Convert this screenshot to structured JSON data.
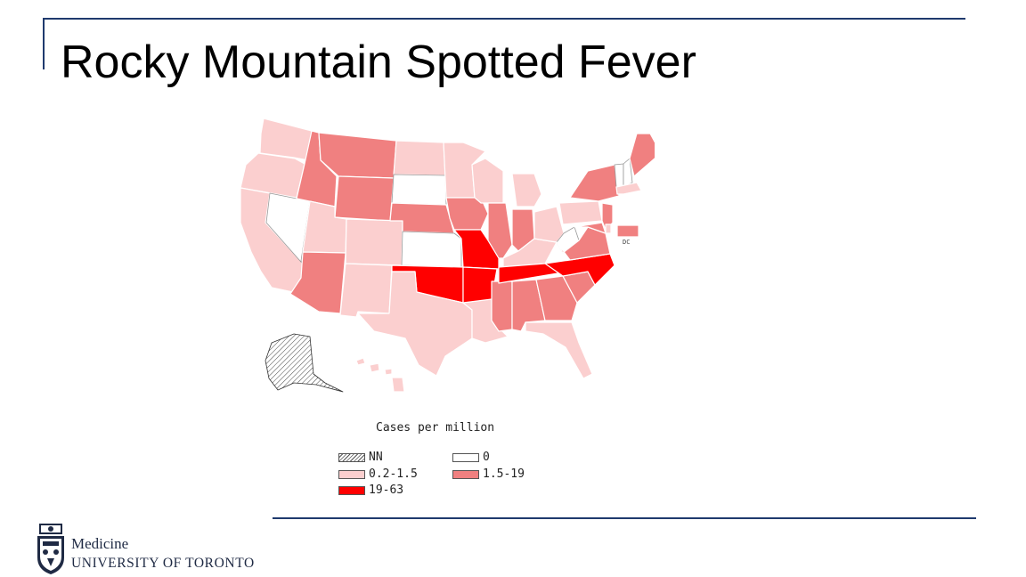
{
  "slide": {
    "title": "Rocky Mountain Spotted Fever"
  },
  "map": {
    "dc_label": "DC",
    "colors": {
      "NN": "hatched",
      "0": "#ffffff",
      "0.2-1.5": "#fbcfcf",
      "1.5-19": "#f08080",
      "19-63": "#ff0000"
    },
    "state_classes": {
      "WA": "0.2-1.5",
      "OR": "0.2-1.5",
      "CA": "0.2-1.5",
      "NV": "0",
      "ID": "1.5-19",
      "MT": "1.5-19",
      "WY": "1.5-19",
      "UT": "0.2-1.5",
      "AZ": "1.5-19",
      "CO": "0.2-1.5",
      "NM": "0.2-1.5",
      "ND": "0.2-1.5",
      "SD": "0",
      "NE": "1.5-19",
      "KS": "0",
      "OK": "19-63",
      "TX": "0.2-1.5",
      "MN": "0.2-1.5",
      "IA": "1.5-19",
      "MO": "19-63",
      "AR": "19-63",
      "LA": "0.2-1.5",
      "WI": "0.2-1.5",
      "IL": "1.5-19",
      "MS": "1.5-19",
      "MI": "0.2-1.5",
      "IN": "1.5-19",
      "KY": "0.2-1.5",
      "TN": "19-63",
      "AL": "1.5-19",
      "OH": "0.2-1.5",
      "WV": "0",
      "GA": "1.5-19",
      "FL": "0.2-1.5",
      "SC": "1.5-19",
      "NC": "19-63",
      "VA": "1.5-19",
      "PA": "0.2-1.5",
      "NY": "1.5-19",
      "ME": "1.5-19",
      "NH": "0",
      "VT": "0",
      "MA": "0.2-1.5",
      "NJ": "1.5-19",
      "MD": "1.5-19",
      "DE": "0.2-1.5",
      "AK": "NN",
      "HI": "0.2-1.5",
      "DC": "1.5-19"
    }
  },
  "legend": {
    "title": "Cases per million",
    "items": [
      {
        "key": "NN",
        "label": "NN"
      },
      {
        "key": "0",
        "label": "0"
      },
      {
        "key": "low",
        "label": "0.2-1.5"
      },
      {
        "key": "mid",
        "label": "1.5-19"
      },
      {
        "key": "high",
        "label": "19-63"
      }
    ]
  },
  "logo": {
    "line1": "Medicine",
    "line2": "UNIVERSITY OF TORONTO"
  }
}
